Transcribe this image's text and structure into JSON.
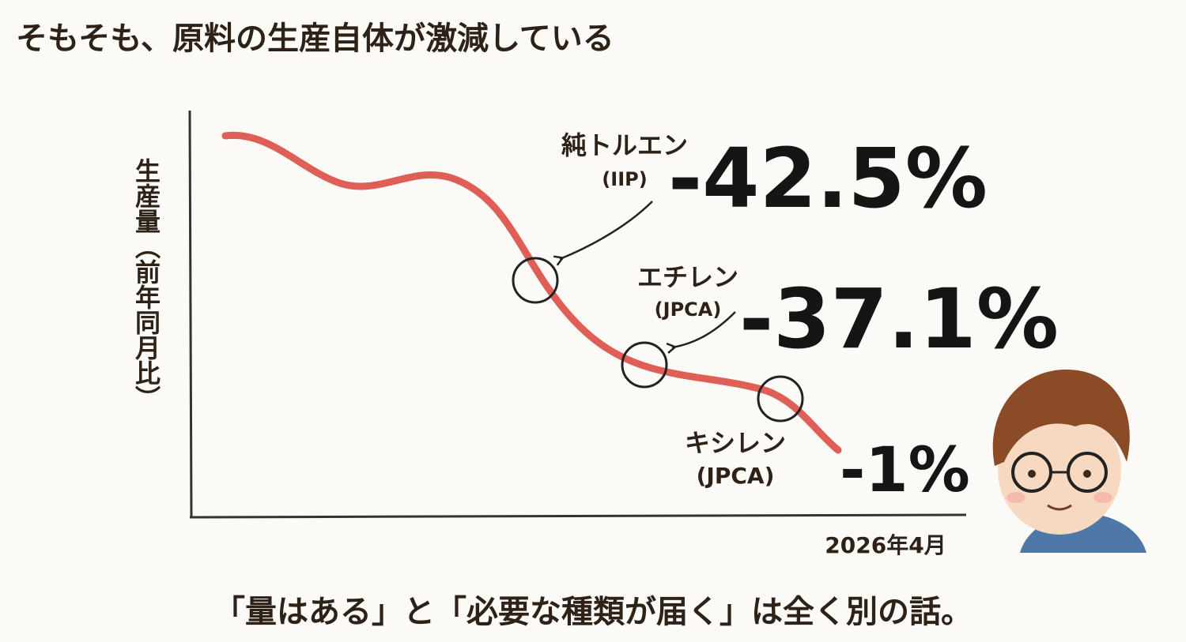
{
  "header": {
    "title": "そもそも、原料の生産自体が激減している"
  },
  "chart": {
    "y_axis_label": "生産量（前年同月比）",
    "x_axis_label": "2026年4月",
    "callouts": [
      {
        "name": "純トルエン",
        "source": "(IIP)",
        "change": "-42.5%"
      },
      {
        "name": "エチレン",
        "source": "(JPCA)",
        "change": "-37.1%"
      },
      {
        "name": "キシレン",
        "source": "(JPCA)",
        "change": "-1%"
      }
    ]
  },
  "footer": {
    "message": "「量はある」と「必要な種類が届く」は全く別の話。"
  }
}
